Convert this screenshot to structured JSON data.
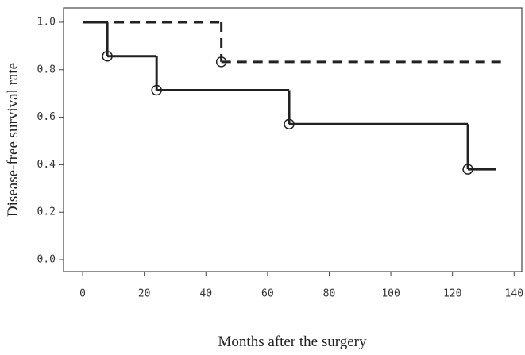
{
  "chart_data": {
    "type": "step",
    "x_label": "Months after the surgery",
    "y_label": "Disease-free survival rate",
    "xlim": [
      -6.2,
      142.5
    ],
    "ylim": [
      -0.05,
      1.06
    ],
    "xticks": [
      0,
      20,
      40,
      60,
      80,
      100,
      120,
      140
    ],
    "yticks": [
      {
        "value": 0,
        "label": "0.0"
      },
      {
        "value": 0.2,
        "label": "0.2"
      },
      {
        "value": 0.4,
        "label": "0.4"
      },
      {
        "value": 0.6,
        "label": "0.6"
      },
      {
        "value": 0.8,
        "label": "0.8"
      },
      {
        "value": 1,
        "label": "1.0"
      }
    ],
    "series": [
      {
        "color": "#222222",
        "dash": false,
        "x": [
          0,
          8,
          24,
          67,
          125,
          134
        ],
        "values": [
          1.0,
          0.857,
          0.714,
          0.571,
          0.381,
          0.381
        ],
        "circles": {
          "x": [
            8,
            24,
            67,
            125
          ],
          "values": [
            0.857,
            0.714,
            0.571,
            0.381
          ]
        }
      },
      {
        "color": "#222222",
        "dash": true,
        "x": [
          0,
          45,
          137
        ],
        "values": [
          1.0,
          0.833,
          0.833
        ],
        "circles": {
          "x": [
            45
          ],
          "values": [
            0.833
          ]
        }
      }
    ]
  }
}
